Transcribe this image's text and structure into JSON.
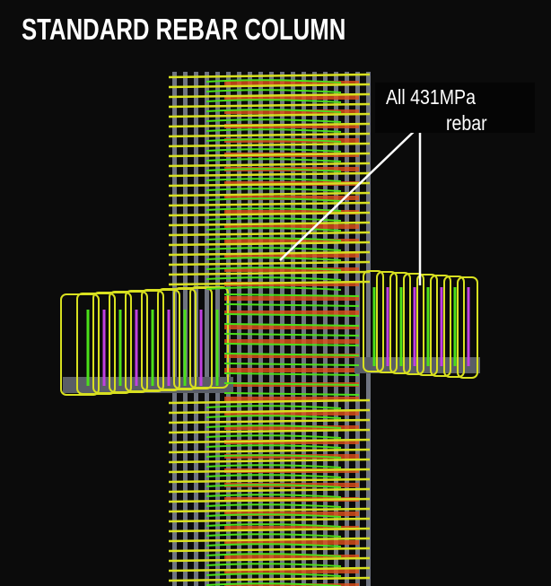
{
  "title": "STANDARD REBAR COLUMN",
  "callout": {
    "line1": "All 431MPa",
    "line2": "rebar"
  },
  "colors": {
    "background": "#0b0b0b",
    "tie": "#d8e020",
    "tie_inner": "#4be01a",
    "longitudinal_bar": "#6f7480",
    "core_bar": "#e0501a",
    "beam_stirrup_accent": "#c040e0",
    "leader_line": "#ffffff"
  }
}
